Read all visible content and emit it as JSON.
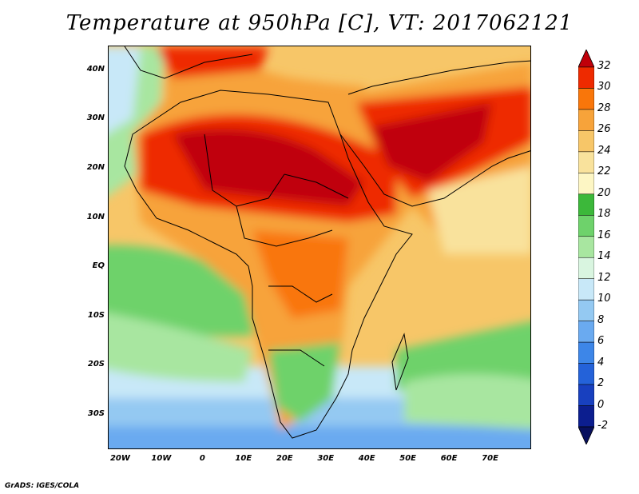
{
  "title": "Temperature at 950hPa [C], VT: 2017062121",
  "footer": "GrADS: IGES/COLA",
  "map": {
    "lon_range": [
      -23,
      80
    ],
    "lat_range": [
      -37,
      45
    ],
    "lat_labels": [
      "40N",
      "30N",
      "20N",
      "10N",
      "EQ",
      "10S",
      "20S",
      "30S"
    ],
    "lat_values": [
      40,
      30,
      20,
      10,
      0,
      -10,
      -20,
      -30
    ],
    "lon_labels": [
      "20W",
      "10W",
      "0",
      "10E",
      "20E",
      "30E",
      "40E",
      "50E",
      "60E",
      "70E"
    ],
    "lon_values": [
      -20,
      -10,
      0,
      10,
      20,
      30,
      40,
      50,
      60,
      70
    ]
  },
  "colorbar": {
    "levels": [
      "32",
      "30",
      "28",
      "26",
      "24",
      "22",
      "20",
      "18",
      "16",
      "14",
      "12",
      "10",
      "8",
      "6",
      "4",
      "2",
      "0",
      "-2"
    ],
    "colors": [
      "#c0000a",
      "#ee2a00",
      "#f9760a",
      "#f7a33a",
      "#f7c668",
      "#f9e29c",
      "#fdf6c4",
      "#3cb83a",
      "#6ed26b",
      "#a8e6a0",
      "#d9f5e0",
      "#c8e8f8",
      "#94c9f2",
      "#6aaaf0",
      "#3d86e8",
      "#2462d9",
      "#1840bf",
      "#0c1e8f",
      "#08105e"
    ]
  }
}
